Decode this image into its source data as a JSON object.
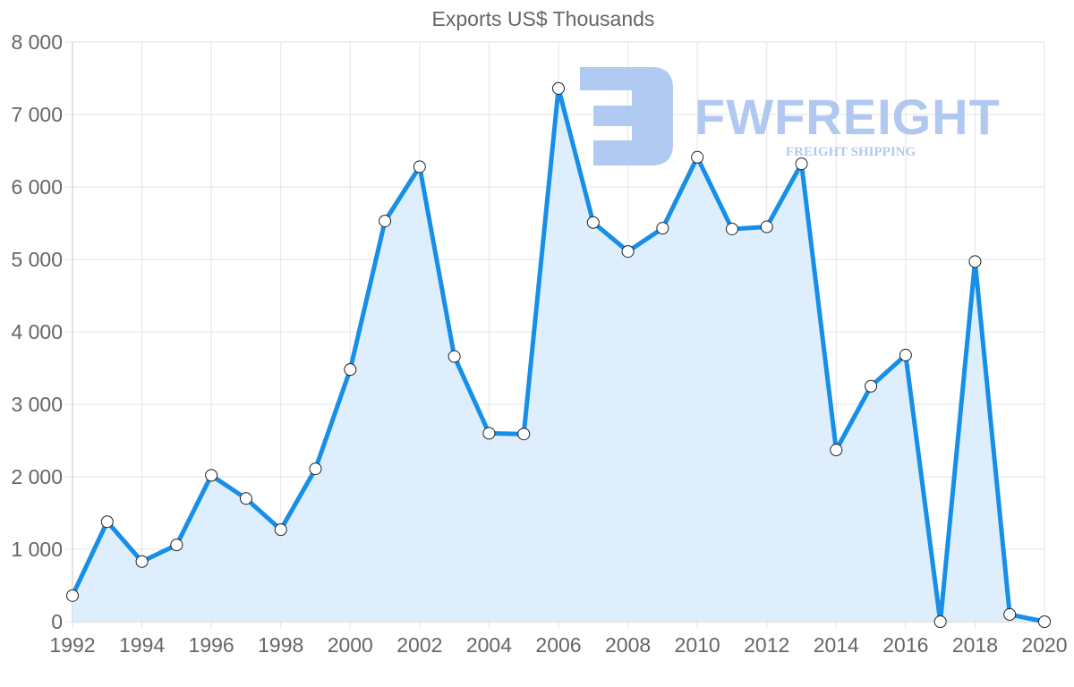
{
  "chart_data": {
    "type": "area",
    "title": "Exports US$ Thousands",
    "xlabel": "",
    "ylabel": "",
    "x": [
      1992,
      1993,
      1994,
      1995,
      1996,
      1997,
      1998,
      1999,
      2000,
      2001,
      2002,
      2003,
      2004,
      2005,
      2006,
      2007,
      2008,
      2009,
      2010,
      2011,
      2012,
      2013,
      2014,
      2015,
      2016,
      2017,
      2018,
      2019,
      2020
    ],
    "series": [
      {
        "name": "Exports US$ Thousands",
        "values": [
          360,
          1380,
          830,
          1060,
          2020,
          1700,
          1270,
          2110,
          3480,
          5530,
          6280,
          3660,
          2600,
          2590,
          7360,
          5510,
          5110,
          5430,
          6410,
          5420,
          5450,
          6320,
          2370,
          3250,
          3680,
          0,
          4970,
          100,
          0
        ]
      }
    ],
    "x_tick_labels": [
      "1992",
      "1994",
      "1996",
      "1998",
      "2000",
      "2002",
      "2004",
      "2006",
      "2008",
      "2010",
      "2012",
      "2014",
      "2016",
      "2018",
      "2020"
    ],
    "y_tick_labels": [
      "0",
      "1 000",
      "2 000",
      "3 000",
      "4 000",
      "5 000",
      "6 000",
      "7 000",
      "8 000"
    ],
    "ylim": [
      0,
      8000
    ],
    "xlim": [
      1992,
      2020
    ],
    "grid": true,
    "legend": "none",
    "colors": {
      "line": "#168fe8",
      "fill": "#d8ebfb",
      "point_fill": "#ffffff",
      "point_stroke": "#222222",
      "grid": "#e3e3e3",
      "axis_text": "#666666"
    }
  },
  "watermark": {
    "brand": "FWFREIGHT",
    "tagline": "FREIGHT SHIPPING",
    "color": "#a9c4f0"
  }
}
